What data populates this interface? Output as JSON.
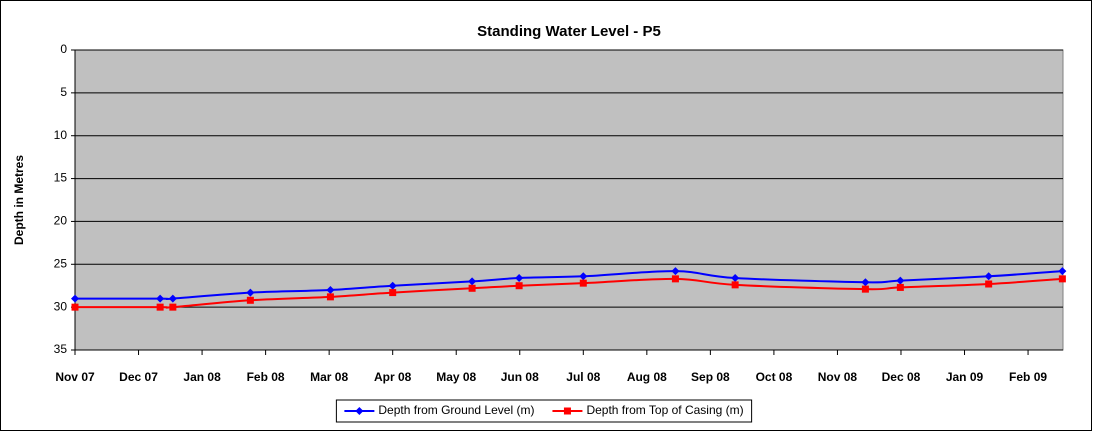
{
  "chart_data": {
    "type": "line",
    "title": "Standing Water Level - P5",
    "y_label": "Depth in Metres",
    "x": [
      0,
      1.34,
      1.54,
      2.76,
      4.02,
      5.0,
      6.25,
      6.99,
      8.0,
      9.45,
      10.39,
      12.44,
      12.99,
      14.38,
      15.54
    ],
    "xlim": [
      0,
      15.55
    ],
    "xticks": [
      {
        "value": 0,
        "label": "Nov 07"
      },
      {
        "value": 1,
        "label": "Dec 07"
      },
      {
        "value": 2,
        "label": "Jan 08"
      },
      {
        "value": 3,
        "label": "Feb 08"
      },
      {
        "value": 4,
        "label": "Mar 08"
      },
      {
        "value": 5,
        "label": "Apr 08"
      },
      {
        "value": 6,
        "label": "May 08"
      },
      {
        "value": 7,
        "label": "Jun 08"
      },
      {
        "value": 8,
        "label": "Jul 08"
      },
      {
        "value": 9,
        "label": "Aug 08"
      },
      {
        "value": 10,
        "label": "Sep 08"
      },
      {
        "value": 11,
        "label": "Oct 08"
      },
      {
        "value": 12,
        "label": "Nov 08"
      },
      {
        "value": 13,
        "label": "Dec 08"
      },
      {
        "value": 14,
        "label": "Jan 09"
      },
      {
        "value": 15,
        "label": "Feb 09"
      }
    ],
    "ylim": [
      0,
      35
    ],
    "yticks": [
      0,
      5,
      10,
      15,
      20,
      25,
      30,
      35
    ],
    "y_reversed": true,
    "grid": true,
    "legend": "bottom",
    "series": [
      {
        "name": "Depth from Ground Level (m)",
        "color": "#0000ff",
        "marker": "diamond",
        "values": [
          29.0,
          29.0,
          29.0,
          28.3,
          28.0,
          27.5,
          27.0,
          26.6,
          26.4,
          25.8,
          26.6,
          27.1,
          26.9,
          26.4,
          25.8
        ]
      },
      {
        "name": "Depth from Top of Casing (m)",
        "color": "#ff0000",
        "marker": "square",
        "values": [
          30.0,
          30.0,
          30.0,
          29.2,
          28.8,
          28.3,
          27.8,
          27.5,
          27.2,
          26.7,
          27.4,
          27.9,
          27.7,
          27.3,
          26.7
        ]
      }
    ]
  }
}
